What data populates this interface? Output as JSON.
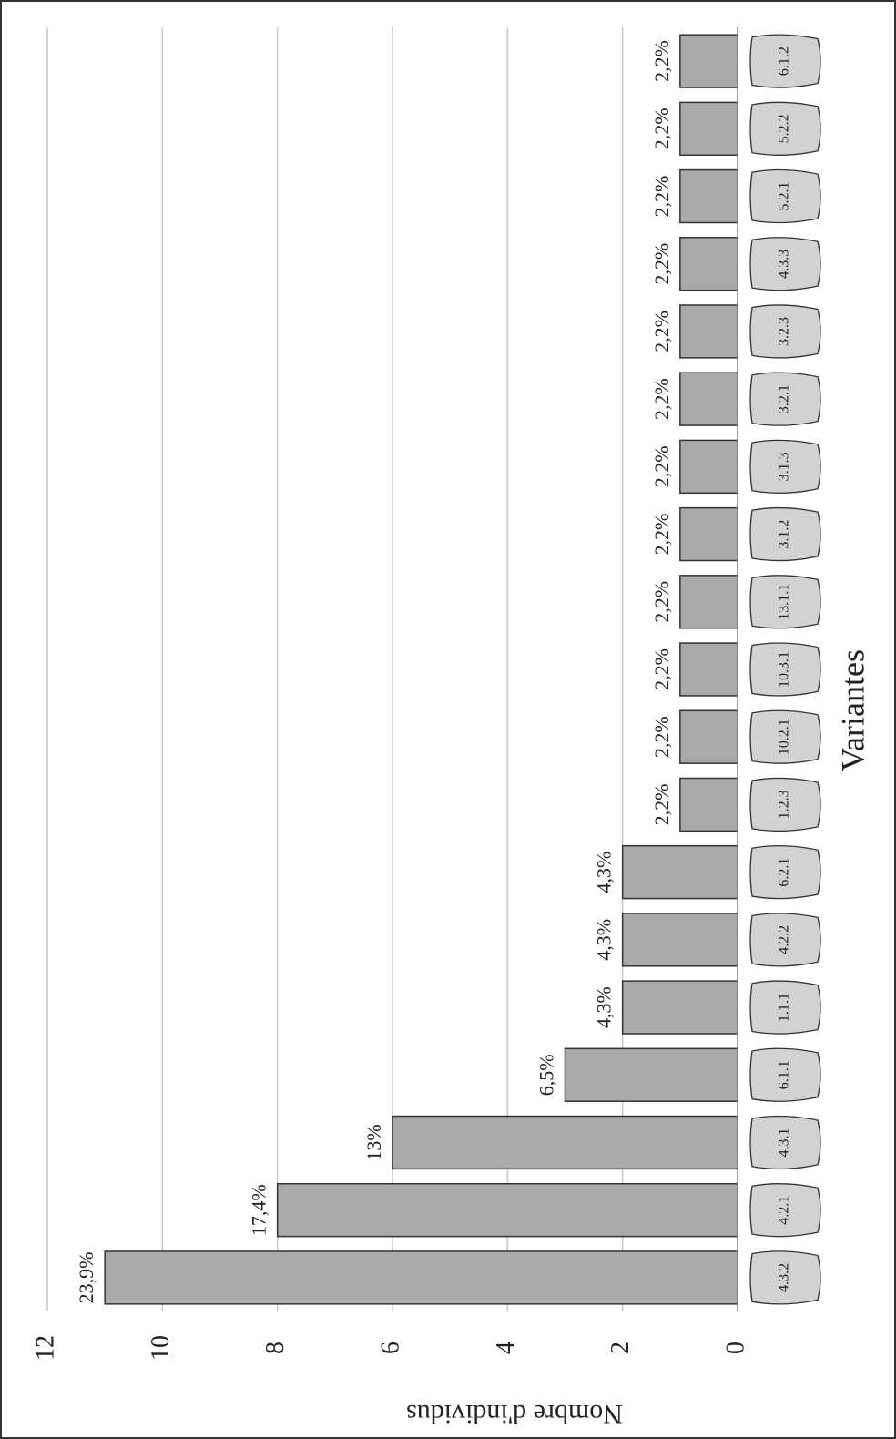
{
  "chart_data": {
    "type": "bar",
    "x_label": "Variantes",
    "y_label": "Nombre d'individus",
    "categories": [
      "4.3.2",
      "4.2.1",
      "4.3.1",
      "6.1.1",
      "1.1.1",
      "4.2.2",
      "6.2.1",
      "1.2.3",
      "10.2.1",
      "10.3.1",
      "13.1.1",
      "3.1.2",
      "3.1.3",
      "3.2.1",
      "3.2.3",
      "4.3.3",
      "5.2.1",
      "5.2.2",
      "6.1.2"
    ],
    "values": [
      11,
      8,
      6,
      3,
      2,
      2,
      2,
      1,
      1,
      1,
      1,
      1,
      1,
      1,
      1,
      1,
      1,
      1,
      1
    ],
    "value_labels": [
      "23,9%",
      "17,4%",
      "13%",
      "6,5%",
      "4,3%",
      "4,3%",
      "4,3%",
      "2,2%",
      "2,2%",
      "2,2%",
      "2,2%",
      "2,2%",
      "2,2%",
      "2,2%",
      "2,2%",
      "2,2%",
      "2,2%",
      "2,2%",
      "2,2%"
    ],
    "color": "#a7a9ab",
    "ylim": [
      0,
      12
    ],
    "yticks": [
      0,
      2,
      4,
      6,
      8,
      10,
      12
    ],
    "grid": true
  }
}
